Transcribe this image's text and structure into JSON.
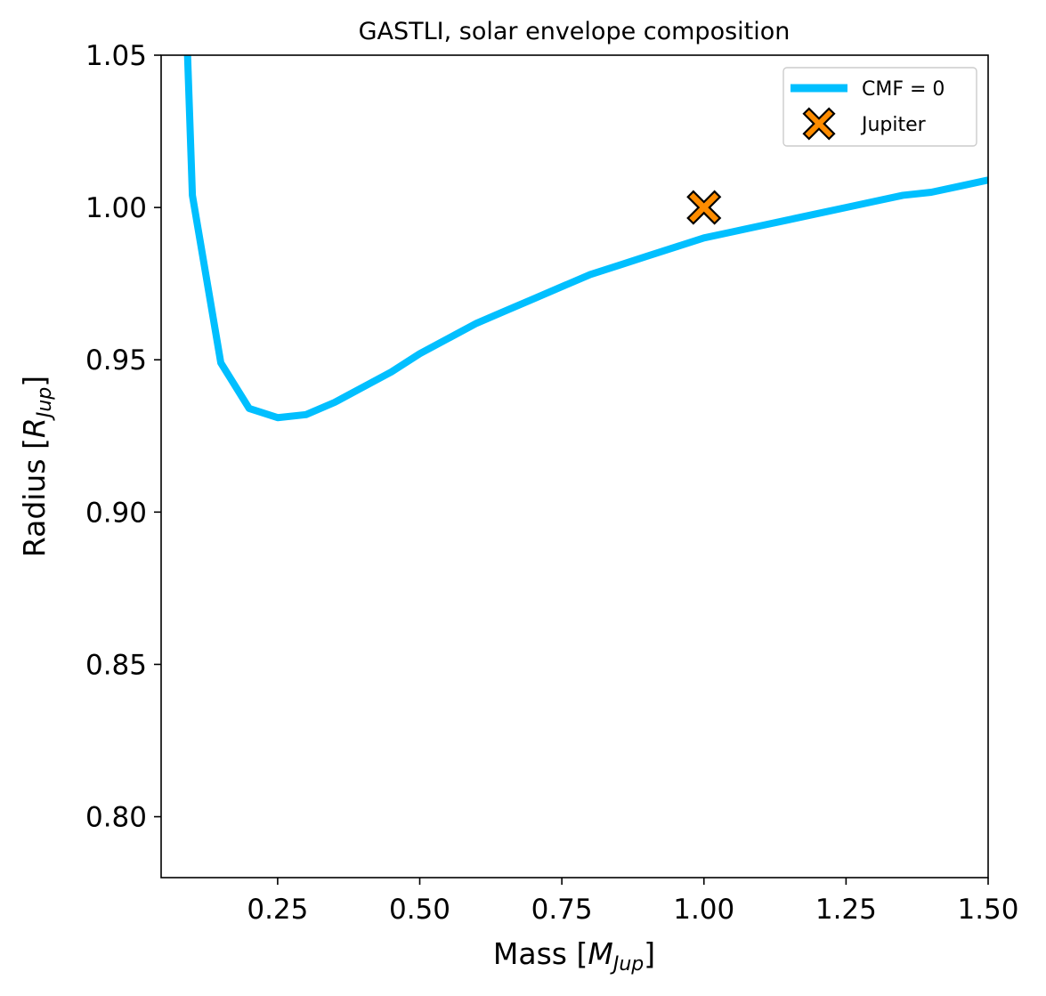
{
  "chart_data": {
    "type": "line",
    "title": "GASTLI, solar envelope composition",
    "xlabel": "Mass [M_Jup]",
    "ylabel": "Radius [R_Jup]",
    "xlabel_parts": {
      "prefix": "Mass [",
      "symbol": "M",
      "sub": "Jup",
      "suffix": "]"
    },
    "ylabel_parts": {
      "prefix": "Radius [",
      "symbol": "R",
      "sub": "Jup",
      "suffix": "]"
    },
    "xlim": [
      0.045,
      1.5
    ],
    "ylim": [
      0.78,
      1.05
    ],
    "xticks": [
      0.25,
      0.5,
      0.75,
      1.0,
      1.25,
      1.5
    ],
    "xtick_labels": [
      "0.25",
      "0.50",
      "0.75",
      "1.00",
      "1.25",
      "1.50"
    ],
    "yticks": [
      0.8,
      0.85,
      0.9,
      0.95,
      1.0,
      1.05
    ],
    "ytick_labels": [
      "0.80",
      "0.85",
      "0.90",
      "0.95",
      "1.00",
      "1.05"
    ],
    "grid": false,
    "legend_position": "top-right",
    "series": [
      {
        "name": "CMF = 0",
        "kind": "line",
        "color": "#00bfff",
        "x": [
          0.09,
          0.1,
          0.15,
          0.2,
          0.25,
          0.3,
          0.35,
          0.4,
          0.45,
          0.5,
          0.55,
          0.6,
          0.65,
          0.7,
          0.75,
          0.8,
          0.85,
          0.9,
          0.95,
          1.0,
          1.05,
          1.1,
          1.15,
          1.2,
          1.25,
          1.3,
          1.35,
          1.4,
          1.45,
          1.5
        ],
        "y": [
          1.058,
          1.004,
          0.949,
          0.934,
          0.931,
          0.932,
          0.936,
          0.941,
          0.946,
          0.952,
          0.957,
          0.962,
          0.966,
          0.97,
          0.974,
          0.978,
          0.981,
          0.984,
          0.987,
          0.99,
          0.992,
          0.994,
          0.996,
          0.998,
          1.0,
          1.002,
          1.004,
          1.005,
          1.007,
          1.009
        ]
      },
      {
        "name": "Jupiter",
        "kind": "marker",
        "marker": "X",
        "color": "#ff8c00",
        "edge_color": "#000000",
        "x": [
          1.0
        ],
        "y": [
          1.0
        ]
      }
    ]
  }
}
